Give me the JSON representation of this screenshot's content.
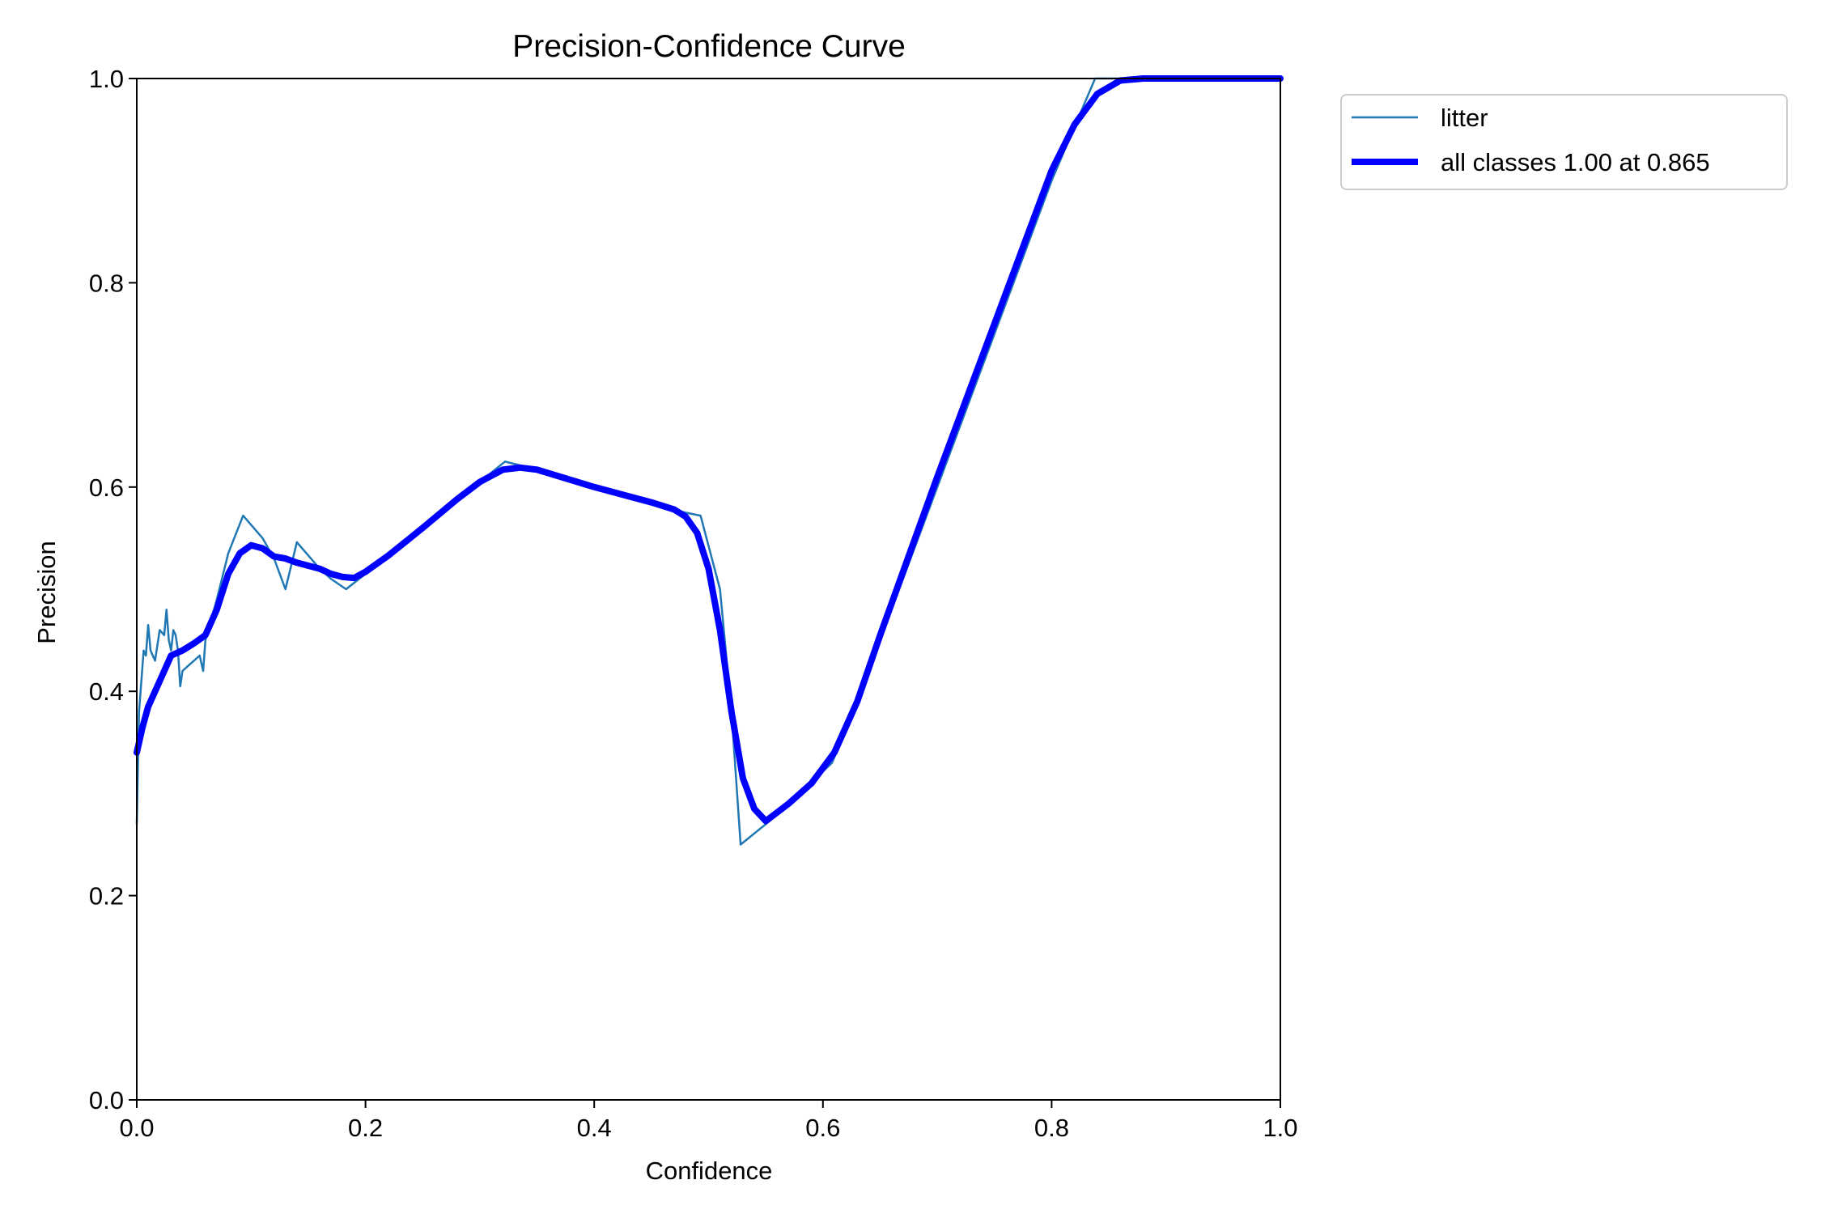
{
  "chart_data": {
    "type": "line",
    "title": "Precision-Confidence Curve",
    "xlabel": "Confidence",
    "ylabel": "Precision",
    "xlim": [
      0,
      1
    ],
    "ylim": [
      0,
      1
    ],
    "xticks": [
      0.0,
      0.2,
      0.4,
      0.6,
      0.8,
      1.0
    ],
    "yticks": [
      0.0,
      0.2,
      0.4,
      0.6,
      0.8,
      1.0
    ],
    "xtick_labels": [
      "0.0",
      "0.2",
      "0.4",
      "0.6",
      "0.8",
      "1.0"
    ],
    "ytick_labels": [
      "0.0",
      "0.2",
      "0.4",
      "0.6",
      "0.8",
      "1.0"
    ],
    "grid": false,
    "legend_position": "outside-top-right",
    "series": [
      {
        "name": "litter",
        "color": "#1f77b4",
        "style": "thin",
        "x": [
          0.0,
          0.002,
          0.006,
          0.008,
          0.01,
          0.012,
          0.016,
          0.02,
          0.024,
          0.026,
          0.028,
          0.03,
          0.032,
          0.034,
          0.036,
          0.038,
          0.04,
          0.045,
          0.05,
          0.055,
          0.058,
          0.06,
          0.065,
          0.07,
          0.08,
          0.093,
          0.11,
          0.12,
          0.13,
          0.14,
          0.16,
          0.17,
          0.183,
          0.2,
          0.25,
          0.3,
          0.322,
          0.34,
          0.4,
          0.46,
          0.48,
          0.493,
          0.51,
          0.52,
          0.528,
          0.55,
          0.58,
          0.608,
          0.63,
          0.7,
          0.8,
          0.838,
          0.86,
          1.0
        ],
        "y": [
          0.27,
          0.38,
          0.44,
          0.435,
          0.465,
          0.44,
          0.43,
          0.46,
          0.455,
          0.48,
          0.45,
          0.44,
          0.46,
          0.455,
          0.44,
          0.405,
          0.42,
          0.425,
          0.43,
          0.435,
          0.42,
          0.45,
          0.47,
          0.49,
          0.535,
          0.572,
          0.55,
          0.53,
          0.5,
          0.546,
          0.52,
          0.51,
          0.5,
          0.515,
          0.56,
          0.605,
          0.625,
          0.62,
          0.6,
          0.58,
          0.575,
          0.572,
          0.5,
          0.38,
          0.25,
          0.27,
          0.3,
          0.33,
          0.39,
          0.6,
          0.9,
          1.0,
          1.0,
          1.0
        ]
      },
      {
        "name": "all classes 1.00 at 0.865",
        "color": "#0000ff",
        "style": "thick",
        "x": [
          0.0,
          0.005,
          0.01,
          0.02,
          0.03,
          0.04,
          0.05,
          0.06,
          0.07,
          0.08,
          0.09,
          0.1,
          0.11,
          0.12,
          0.13,
          0.14,
          0.15,
          0.16,
          0.17,
          0.18,
          0.19,
          0.2,
          0.22,
          0.25,
          0.28,
          0.3,
          0.32,
          0.335,
          0.35,
          0.4,
          0.45,
          0.47,
          0.48,
          0.49,
          0.5,
          0.51,
          0.52,
          0.53,
          0.54,
          0.55,
          0.57,
          0.59,
          0.61,
          0.63,
          0.65,
          0.7,
          0.75,
          0.8,
          0.82,
          0.84,
          0.86,
          0.88,
          0.9,
          1.0
        ],
        "y": [
          0.34,
          0.365,
          0.385,
          0.41,
          0.435,
          0.44,
          0.447,
          0.455,
          0.48,
          0.515,
          0.535,
          0.543,
          0.54,
          0.532,
          0.53,
          0.526,
          0.523,
          0.52,
          0.515,
          0.512,
          0.511,
          0.517,
          0.533,
          0.56,
          0.588,
          0.605,
          0.617,
          0.619,
          0.617,
          0.6,
          0.585,
          0.578,
          0.571,
          0.555,
          0.52,
          0.46,
          0.38,
          0.315,
          0.285,
          0.273,
          0.29,
          0.31,
          0.34,
          0.39,
          0.455,
          0.61,
          0.76,
          0.91,
          0.955,
          0.985,
          0.998,
          1.0,
          1.0,
          1.0
        ]
      }
    ]
  }
}
